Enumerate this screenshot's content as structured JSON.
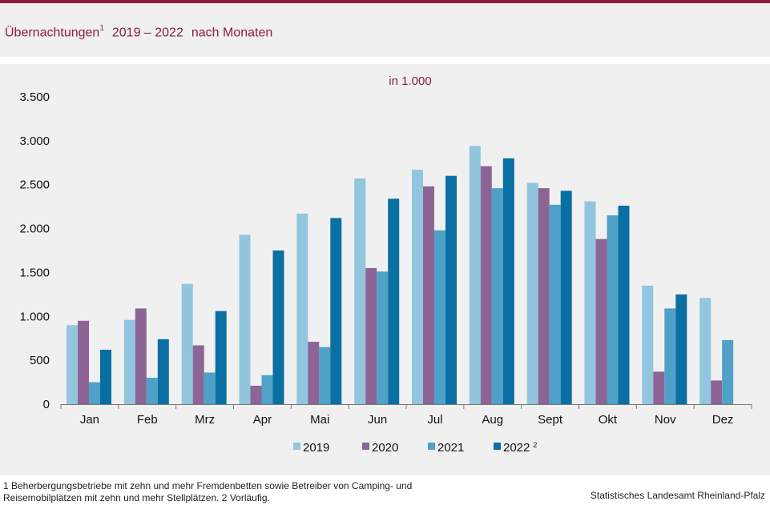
{
  "header": {
    "title_main": "Übernachtungen",
    "title_sup": "1",
    "title_years": "2019 – 2022",
    "title_tail": "nach Monaten"
  },
  "footer": {
    "footnote": "1 Beherbergungsbetriebe mit zehn und mehr Fremdenbetten sowie Betreiber von Camping- und Reisemobilplätzen mit zehn und mehr Stellplätzen. 2 Vorläufig.",
    "source": "Statistisches Landesamt Rheinland-Pfalz"
  },
  "colors": {
    "accent": "#8c1d3b",
    "s2019": "#92c5de",
    "s2020": "#8c6496",
    "s2021": "#4fa1c7",
    "s2022": "#0a6fa3"
  },
  "chart_data": {
    "type": "bar",
    "title": "Übernachtungen¹ 2019 – 2022 nach Monaten",
    "unit_label": "in 1.000",
    "categories": [
      "Jan",
      "Feb",
      "Mrz",
      "Apr",
      "Mai",
      "Jun",
      "Jul",
      "Aug",
      "Sept",
      "Okt",
      "Nov",
      "Dez"
    ],
    "ylim": [
      0,
      3500
    ],
    "yticks": [
      0,
      500,
      1000,
      1500,
      2000,
      2500,
      3000,
      3500
    ],
    "ytick_labels": [
      "0",
      "500",
      "1.000",
      "1.500",
      "2.000",
      "2.500",
      "3.000",
      "3.500"
    ],
    "grid": false,
    "legend_position": "bottom-center",
    "series": [
      {
        "name": "2019",
        "legend_sup": "",
        "values": [
          900,
          960,
          1370,
          1930,
          2170,
          2570,
          2670,
          2940,
          2520,
          2310,
          1350,
          1210
        ]
      },
      {
        "name": "2020",
        "legend_sup": "",
        "values": [
          950,
          1090,
          670,
          210,
          710,
          1550,
          2480,
          2710,
          2460,
          1880,
          370,
          270
        ]
      },
      {
        "name": "2021",
        "legend_sup": "",
        "values": [
          250,
          300,
          360,
          330,
          650,
          1510,
          1980,
          2460,
          2270,
          2150,
          1090,
          730
        ]
      },
      {
        "name": "2022",
        "legend_sup": "2",
        "values": [
          620,
          740,
          1060,
          1750,
          2120,
          2340,
          2600,
          2800,
          2430,
          2260,
          1250,
          null
        ]
      }
    ]
  }
}
